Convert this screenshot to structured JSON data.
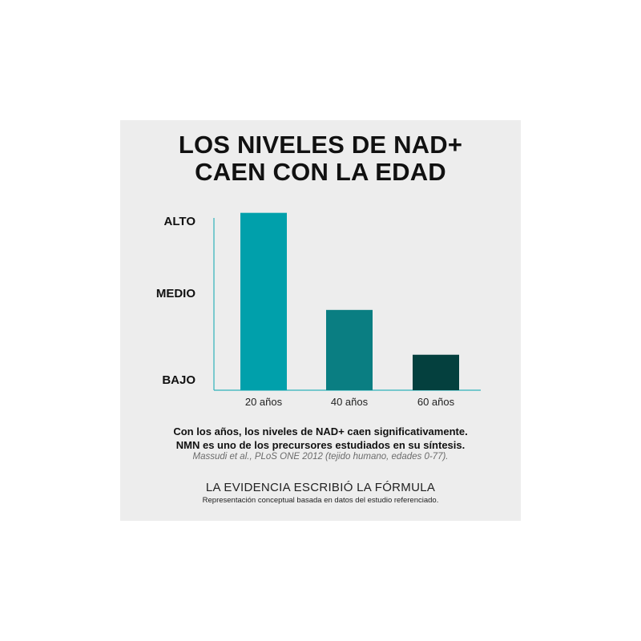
{
  "title": {
    "line1": "LOS NIVELES DE NAD+",
    "line2": "CAEN CON LA EDAD"
  },
  "chart_data": {
    "type": "bar",
    "categories": [
      "20 años",
      "40 años",
      "60 años"
    ],
    "values": [
      0.95,
      0.43,
      0.19
    ],
    "y_level_labels": [
      "ALTO",
      "MEDIO",
      "BAJO"
    ],
    "ylim": [
      0,
      1
    ],
    "grid": false,
    "legend": "none",
    "bar_colors": [
      "#00a0ab",
      "#0a7e82",
      "#04403e"
    ],
    "axis_color": "#2fb2ba"
  },
  "caption": {
    "line1": "Con los años, los niveles de NAD+ caen significativamente.",
    "line2": "NMN es uno de los precursores estudiados en su síntesis.",
    "citation": "Massudi et al., PLoS ONE 2012 (tejido humano, edades 0-77).",
    "tagline": "LA EVIDENCIA ESCRIBIÓ LA FÓRMULA",
    "note": "Representación conceptual basada en datos del estudio referenciado."
  }
}
